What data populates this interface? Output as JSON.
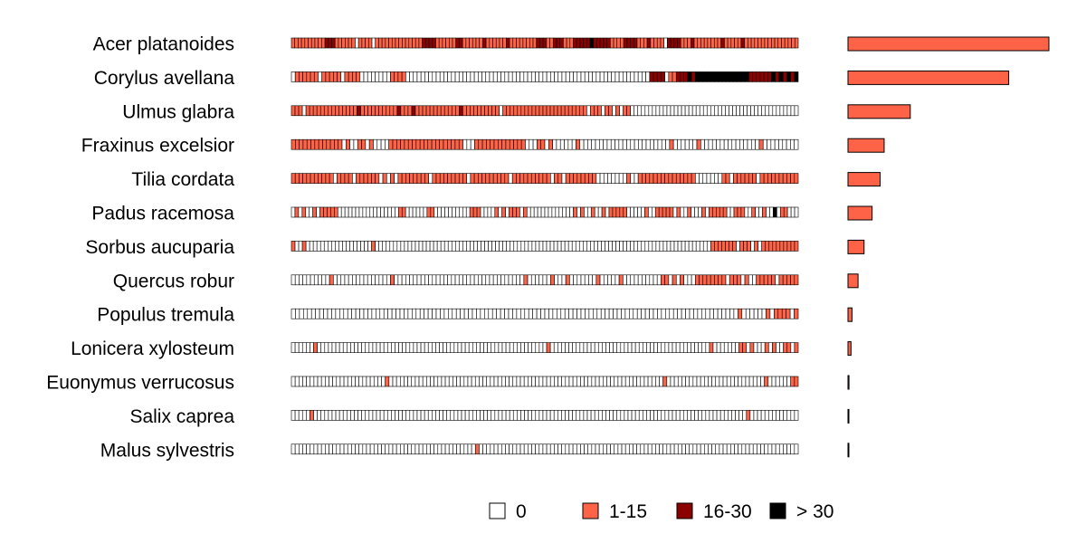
{
  "chart_data": {
    "type": "heatmap",
    "title": "",
    "xlabel": "",
    "ylabel": "",
    "cell_count": 96,
    "species": [
      {
        "name": "Acer platanoides",
        "pattern": "1111111111222111111011110111111111111112222111111221111112111111211111111222112221112222232222211112222111211110222211121111111121111121111111111111111",
        "bar_value": 1.0
      },
      {
        "name": "Corylus avellana",
        "pattern": "0111111011111011110000000011110000000000000000000000000000000000000000000000000000000000000000222201122232333333333333332222223232323",
        "bar_value": 0.8
      },
      {
        "name": "Ulmus glabra",
        "pattern": "1110111111111111112111111111121112111111111111211111111110111111111111111111111110111011010110000000000000000000000000000000000000000000000",
        "bar_value": 0.31
      },
      {
        "name": "Fraxinus excelsior",
        "pattern": "1111111111111010011010000111111111111111111100011111111111110001101000000100000000000000000000000100000010000000000000001000000000",
        "bar_value": 0.18
      },
      {
        "name": "Tilia cordata",
        "pattern": "1111111111101111011111101010111111110111111111011111111110111111111101101111111100000000100111111111111111000000011011111101111111111",
        "bar_value": 0.16
      },
      {
        "name": "Padus racemosa",
        "pattern": "0101001011111000000000000000001100000011000000000011100001010111010000000000000101001001011111000001001111101001000101111100111001001003011000",
        "bar_value": 0.12
      },
      {
        "name": "Sorbus aucuparia",
        "pattern": "1001000000000000000000100000000000000000000000000000000000000000000000000000000000000000000000000000000000000000000111111101110101111111111",
        "bar_value": 0.08
      },
      {
        "name": "Quercus robur",
        "pattern": "0000000000100000000000000010000000000000000000000000000000000100000010001000000010000010000000000110101000111111110111010011111011111",
        "bar_value": 0.05
      },
      {
        "name": "Populus tremula",
        "pattern": "000000000000000000000000000000000000000000000000000000000000000000000000000000000000000000000000000000000000000100000010111101",
        "bar_value": 0.02
      },
      {
        "name": "Lonicera xylosteum",
        "pattern": "00000010000000000000000000000000000000000000000000000000000000000000010000000000000000000000000000000000000000000100000001101000101001101",
        "bar_value": 0.015
      },
      {
        "name": "Euonymus verrucosus",
        "pattern": "000000000000000000000000010000000000000000000000000000000000000000000000000000000000000000000000000100000000000000000000000000100000011",
        "bar_value": 0.005
      },
      {
        "name": "Salix caprea",
        "pattern": "00000100000000000000000000000000000000000000000000000000000000000000000000000000000000000000000000000000000000000000000000010000000000000",
        "bar_value": 0.002
      },
      {
        "name": "Malus sylvestris",
        "pattern": "000000000000000000000000000000000000000000000000010000000000000000000000000000000000000000000000000000000000000000000000000000000000000",
        "bar_value": 0.002
      }
    ],
    "legend": [
      {
        "label": "0",
        "color": "#ffffff"
      },
      {
        "label": "1-15",
        "color": "#ff6347"
      },
      {
        "label": "16-30",
        "color": "#8b0000"
      },
      {
        "label": "> 30",
        "color": "#000000"
      }
    ],
    "legend_placement": "bottom-center",
    "colors": {
      "level_0": "#ffffff",
      "level_1": "#ff6347",
      "level_2": "#8b0000",
      "level_3": "#000000",
      "bar": "#ff6347",
      "stroke": "#000000"
    }
  }
}
